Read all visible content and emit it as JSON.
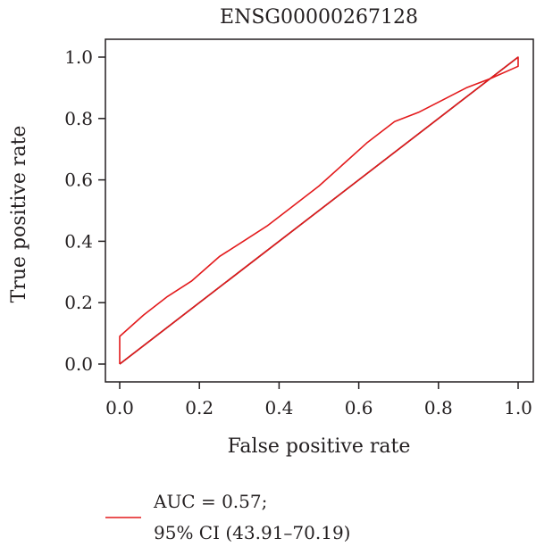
{
  "chart_data": {
    "type": "line",
    "title": "ENSG00000267128",
    "xlabel": "False positive rate",
    "ylabel": "True positive rate",
    "xlim": [
      0,
      1
    ],
    "ylim": [
      0,
      1
    ],
    "xticks": [
      "0.0",
      "0.2",
      "0.4",
      "0.6",
      "0.8",
      "1.0"
    ],
    "yticks": [
      "0.0",
      "0.2",
      "0.4",
      "0.6",
      "0.8",
      "1.0"
    ],
    "grid": false,
    "legend_position": "bottom-left",
    "series": [
      {
        "name": "AUC = 0.57;\n95% CI (43.91–70.19)",
        "color": "#e31a1c",
        "x": [
          0.0,
          0.0,
          0.06,
          0.12,
          0.18,
          0.25,
          0.31,
          0.37,
          0.43,
          0.5,
          0.56,
          0.62,
          0.69,
          0.75,
          0.81,
          0.87,
          0.93,
          1.0,
          1.0,
          0.0
        ],
        "y": [
          0.0,
          0.09,
          0.16,
          0.22,
          0.27,
          0.35,
          0.4,
          0.45,
          0.51,
          0.58,
          0.65,
          0.72,
          0.79,
          0.82,
          0.86,
          0.9,
          0.93,
          0.97,
          1.0,
          0.0
        ]
      },
      {
        "name": "",
        "color": "#000000",
        "x": [
          0.0,
          1.0
        ],
        "y": [
          0.0,
          1.0
        ]
      }
    ],
    "legend": {
      "line1": "AUC = 0.57;",
      "line2": "95% CI (43.91–70.19)",
      "color": "#e31a1c"
    }
  }
}
